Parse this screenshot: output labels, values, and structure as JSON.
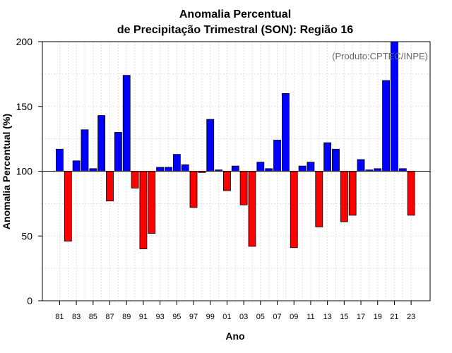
{
  "chart_data": {
    "type": "bar",
    "title_line1": "Anomalia Percentual",
    "title_line2": "de Precipitação Trimestral (SON): Região 16",
    "xlabel": "Ano",
    "ylabel": "Anomalia Percentual (%)",
    "credit": "(Produto:CPTEC/INPE)",
    "baseline": 100,
    "ylim": [
      0,
      200
    ],
    "yticks": [
      "0",
      "50",
      "100",
      "150",
      "200"
    ],
    "ytick_values": [
      0,
      50,
      100,
      150,
      200
    ],
    "above_color": "#0000ff",
    "below_color": "#ff0000",
    "categories": [
      "81",
      "82",
      "83",
      "84",
      "85",
      "86",
      "87",
      "88",
      "89",
      "90",
      "91",
      "92",
      "93",
      "94",
      "95",
      "96",
      "97",
      "98",
      "99",
      "00",
      "01",
      "02",
      "03",
      "04",
      "05",
      "06",
      "07",
      "08",
      "09",
      "10",
      "11",
      "12",
      "13",
      "14",
      "15",
      "16",
      "17",
      "18",
      "19",
      "20",
      "21",
      "22",
      "23"
    ],
    "xtick_labels": [
      "81",
      "83",
      "85",
      "87",
      "89",
      "91",
      "93",
      "95",
      "97",
      "99",
      "01",
      "03",
      "05",
      "07",
      "09",
      "11",
      "13",
      "15",
      "17",
      "19",
      "21",
      "23"
    ],
    "values": [
      117,
      46,
      108,
      132,
      102,
      143,
      77,
      130,
      174,
      87,
      40,
      52,
      103,
      103,
      113,
      105,
      72,
      99,
      140,
      101,
      85,
      104,
      74,
      42,
      107,
      102,
      124,
      160,
      41,
      104,
      107,
      57,
      122,
      117,
      61,
      66,
      109,
      101,
      102,
      170,
      200,
      102,
      66
    ]
  }
}
